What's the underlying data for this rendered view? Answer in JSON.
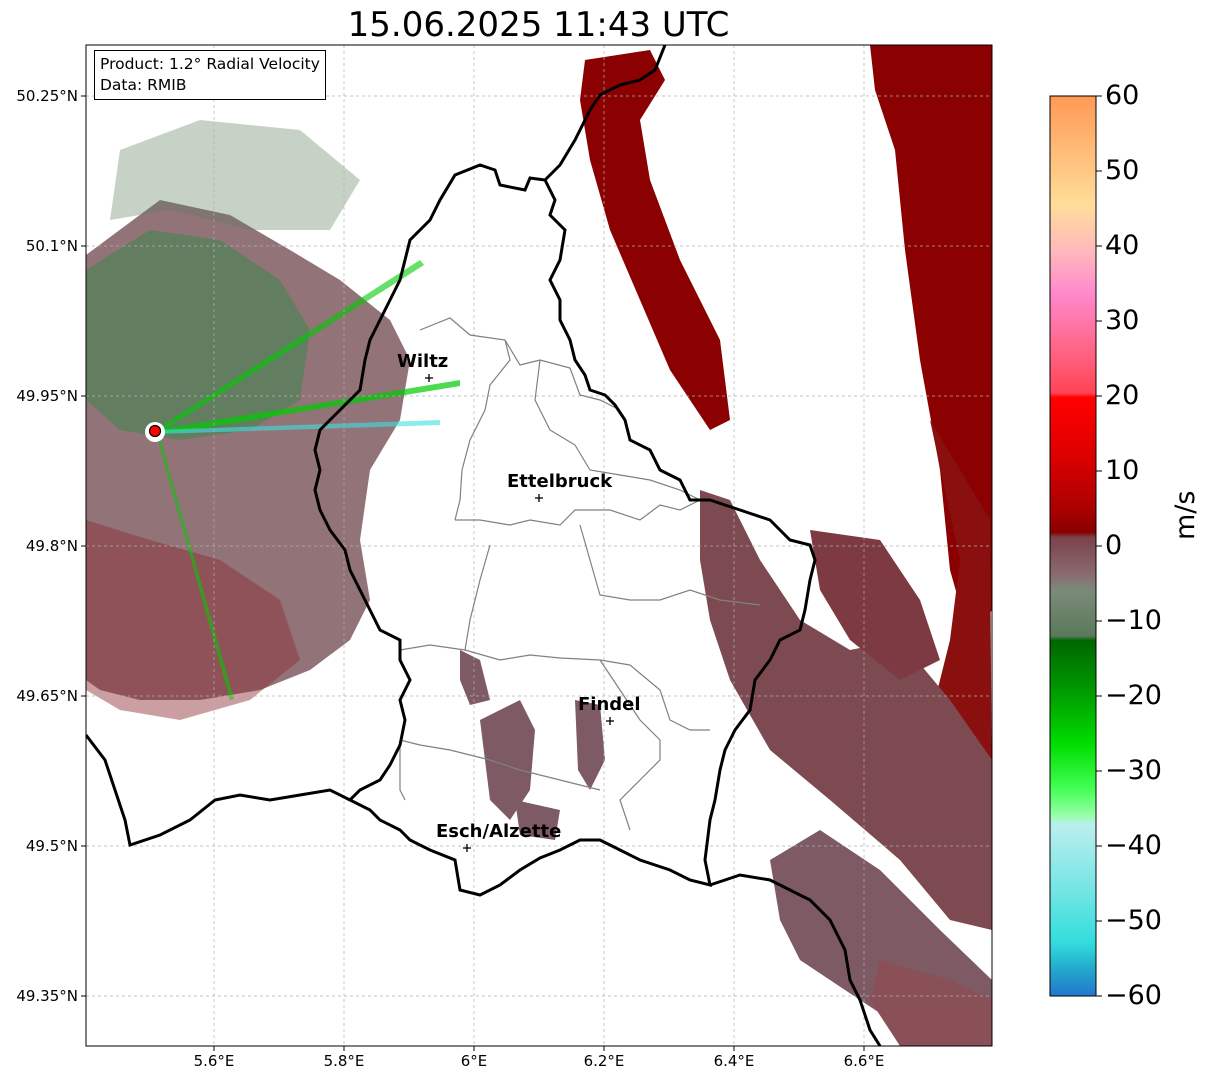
{
  "title": "15.06.2025 11:43 UTC",
  "info_box": {
    "line1": "Product: 1.2° Radial Velocity",
    "line2": "Data: RMIB"
  },
  "x_ticks": [
    "5.6°E",
    "5.8°E",
    "6°E",
    "6.2°E",
    "6.4°E",
    "6.6°E"
  ],
  "y_ticks": [
    "50.25°N",
    "50.1°N",
    "49.95°N",
    "49.8°N",
    "49.65°N",
    "49.5°N",
    "49.35°N"
  ],
  "cities": [
    {
      "name": "Wiltz"
    },
    {
      "name": "Ettelbruck"
    },
    {
      "name": "Findel"
    },
    {
      "name": "Esch/Alzette"
    }
  ],
  "colorbar": {
    "label": "m/s",
    "ticks": [
      "60",
      "50",
      "40",
      "30",
      "20",
      "10",
      "0",
      "−10",
      "−20",
      "−30",
      "−40",
      "−50",
      "−60"
    ],
    "range": [
      -60,
      60
    ]
  },
  "colors": {
    "receding_dark": "#8b0000",
    "receding_muted": "#8a4a52",
    "zero_grey": "#8a6a70",
    "near_zero_green": "#5e7e5e",
    "approach_green": "#00cc00",
    "approach_cyan": "#40e0e0",
    "radar_site": "#ff0000"
  }
}
